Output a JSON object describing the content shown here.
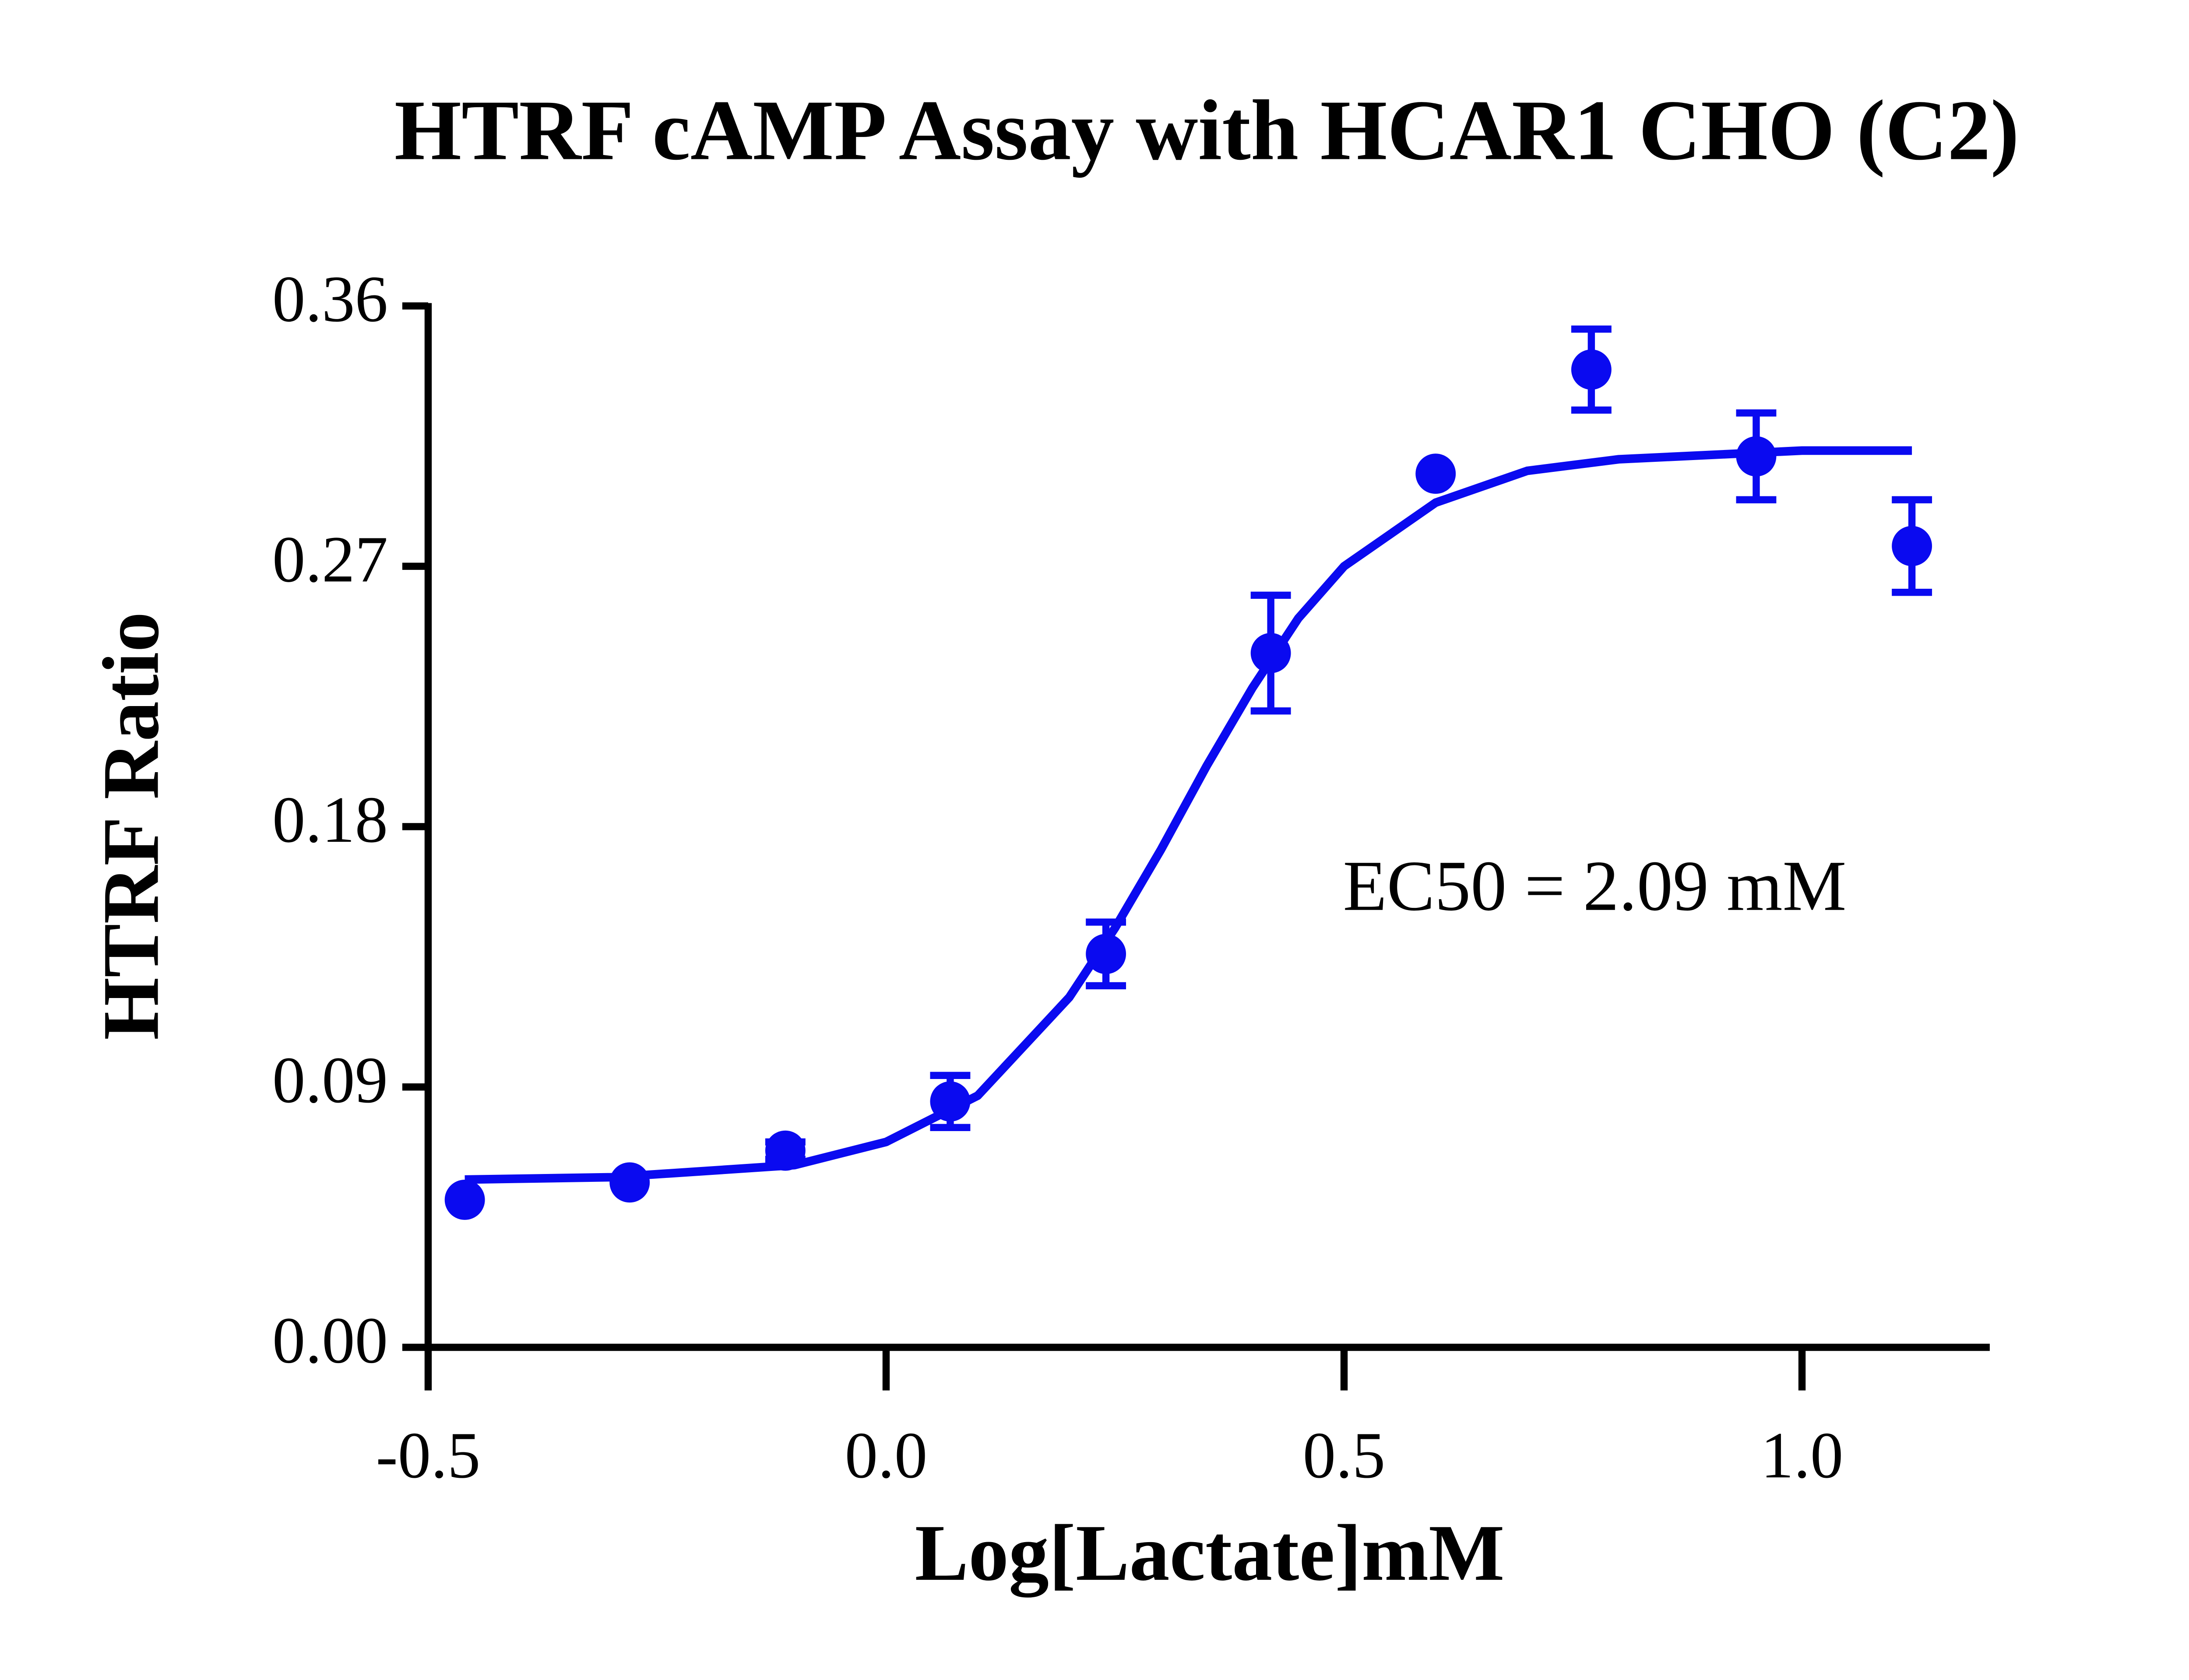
{
  "chart_data": {
    "type": "scatter",
    "title": "HTRF cAMP Assay with HCAR1 CHO (C2)",
    "x_label": "Log[Lactate]mM",
    "y_label": "HTRF Ratio",
    "annotation": "EC50 = 2.09 mM",
    "color": "#0a0af0",
    "xlim": [
      -0.5,
      1.205
    ],
    "ylim": [
      0,
      0.36
    ],
    "xticks": [
      -0.5,
      {
        "value": 0,
        "label": "0.0"
      },
      0.5,
      {
        "value": 1,
        "label": "1.0"
      }
    ],
    "yticks": [
      {
        "value": 0,
        "label": "0.00"
      },
      0.09,
      0.18,
      0.27,
      0.36
    ],
    "points": {
      "x": [
        -0.46,
        -0.28,
        -0.11,
        0.07,
        0.24,
        0.42,
        0.6,
        0.77,
        0.95,
        1.12
      ],
      "values": [
        0.051,
        0.057,
        0.068,
        0.085,
        0.136,
        0.24,
        0.302,
        0.338,
        0.308,
        0.277
      ],
      "errors": [
        null,
        null,
        0.003,
        0.009,
        0.011,
        0.02,
        null,
        0.014,
        0.015,
        0.016
      ]
    },
    "fit": {
      "x": [
        -0.46,
        -0.3,
        -0.1,
        0.0,
        0.1,
        0.2,
        0.25,
        0.3,
        0.35,
        0.4,
        0.45,
        0.5,
        0.6,
        0.7,
        0.8,
        1.0,
        1.12
      ],
      "values": [
        0.058,
        0.0588,
        0.063,
        0.071,
        0.087,
        0.121,
        0.145,
        0.172,
        0.201,
        0.228,
        0.252,
        0.27,
        0.292,
        0.303,
        0.307,
        0.31,
        0.31
      ]
    }
  }
}
